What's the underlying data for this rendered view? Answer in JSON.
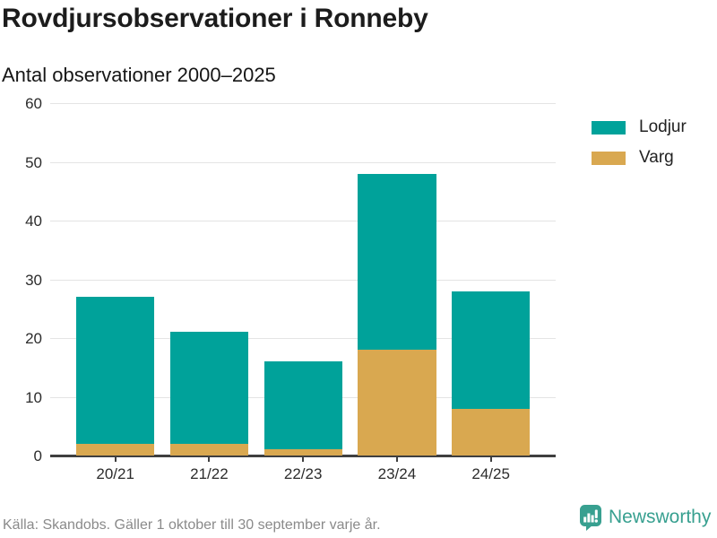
{
  "header": {
    "title": "Rovdjursobservationer i Ronneby",
    "subtitle": "Antal observationer 2000–2025"
  },
  "chart_data": {
    "type": "bar",
    "stacked": true,
    "title": "Rovdjursobservationer i Ronneby",
    "subtitle": "Antal observationer 2000–2025",
    "categories": [
      "20/21",
      "21/22",
      "22/23",
      "23/24",
      "24/25"
    ],
    "series": [
      {
        "name": "Lodjur",
        "color": "#00a29a",
        "values": [
          25,
          19,
          15,
          30,
          20
        ]
      },
      {
        "name": "Varg",
        "color": "#d9a850",
        "values": [
          2,
          2,
          1,
          18,
          8
        ]
      }
    ],
    "stack_order_bottom_to_top": [
      "Varg",
      "Lodjur"
    ],
    "totals": [
      27,
      21,
      16,
      48,
      28
    ],
    "xlabel": "",
    "ylabel": "",
    "ylim": [
      0,
      60
    ],
    "yticks": [
      0,
      10,
      20,
      30,
      40,
      50,
      60
    ],
    "grid": "horizontal",
    "legend_position": "right"
  },
  "legend": {
    "items": [
      {
        "label": "Lodjur",
        "color": "#00a29a"
      },
      {
        "label": "Varg",
        "color": "#d9a850"
      }
    ]
  },
  "footer": {
    "source": "Källa: Skandobs. Gäller 1 oktober till 30 september varje år.",
    "brand": "Newsworthy",
    "brand_color": "#38a090"
  },
  "style_colors": {
    "grid": "#e4e4e4",
    "axis": "#3f3f3f",
    "title": "#1c1c1c",
    "source": "#8a8a8a"
  }
}
